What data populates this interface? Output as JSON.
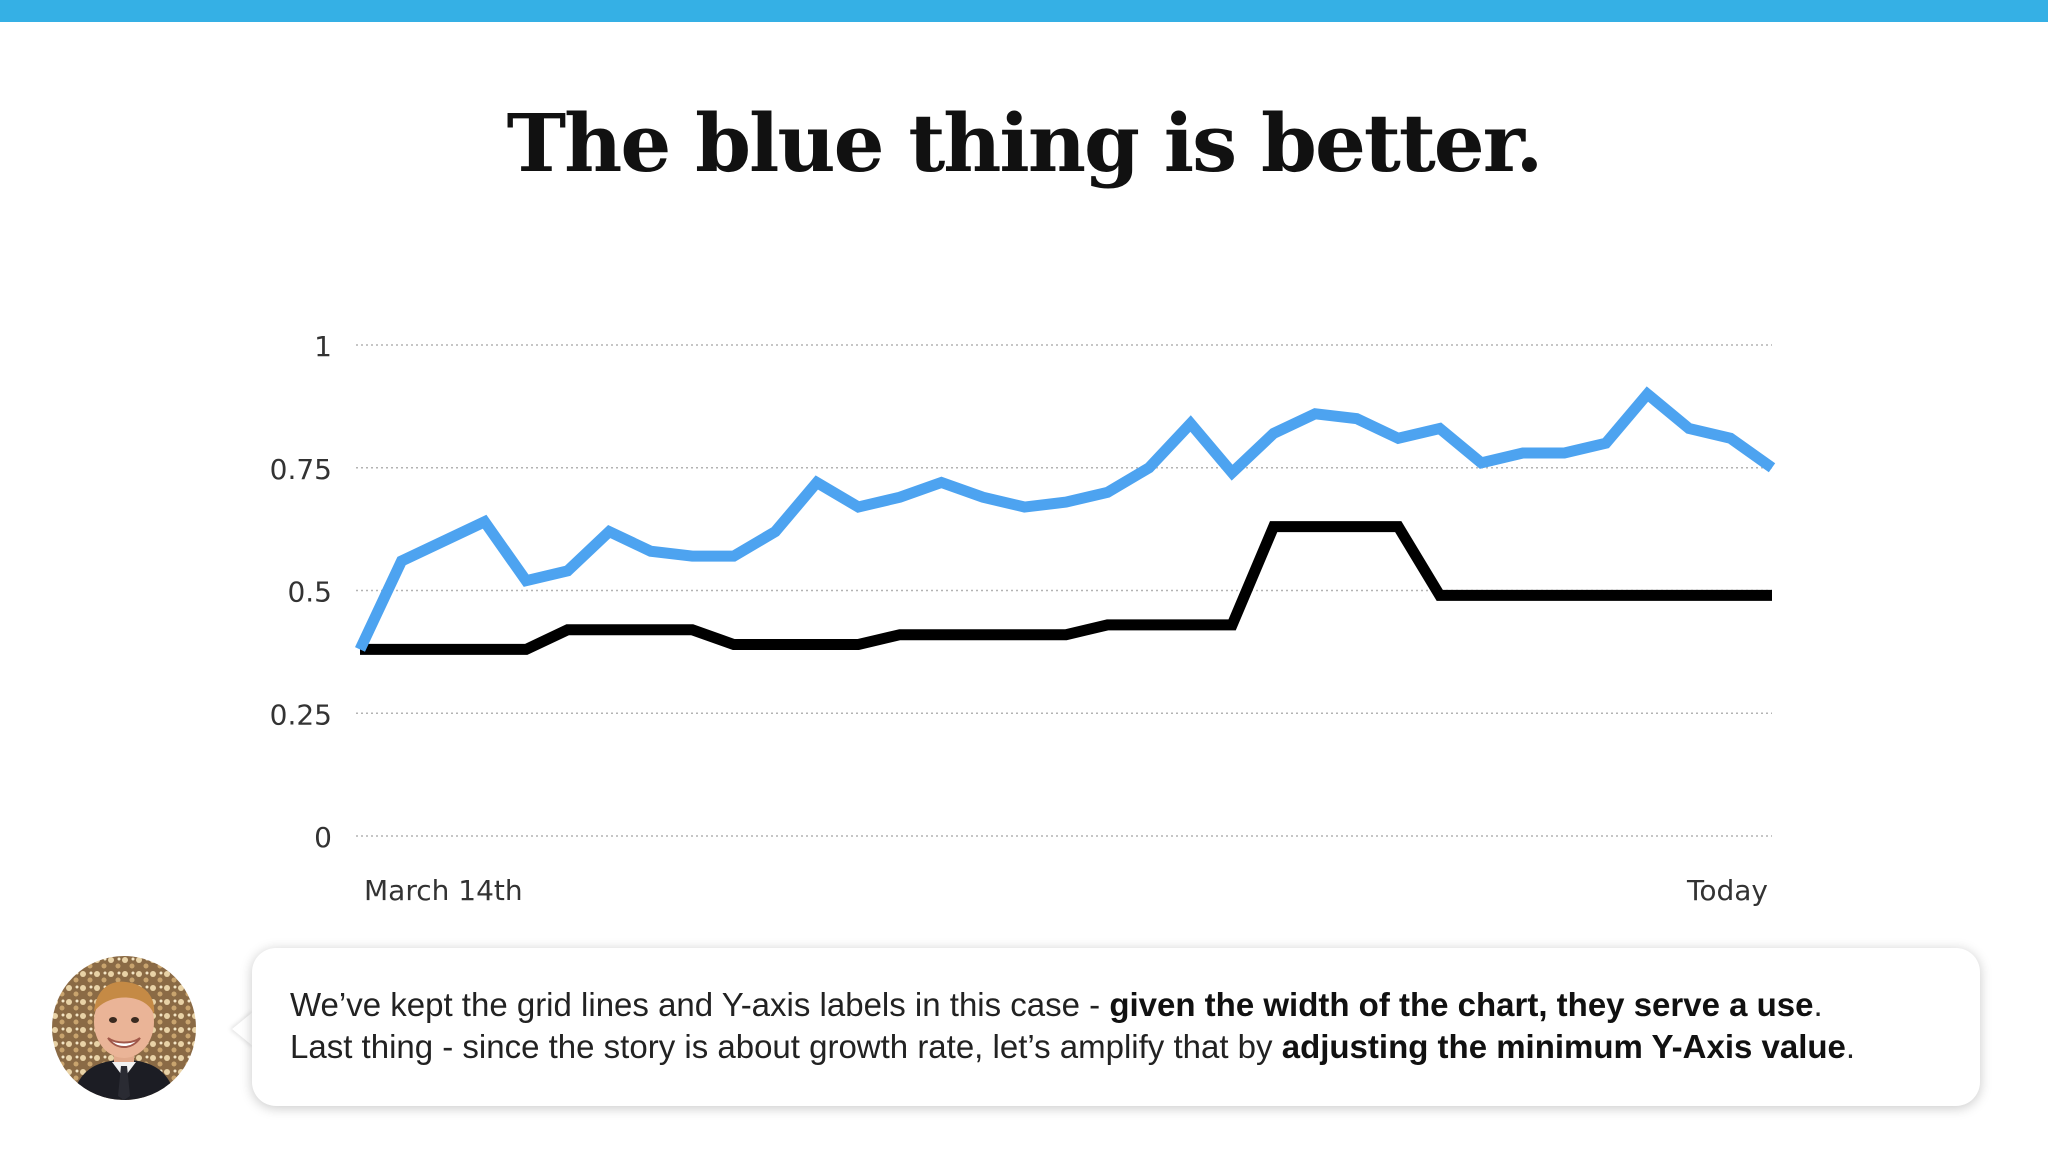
{
  "slide": {
    "title": "The blue thing is better.",
    "accent_color": "#35B0E5"
  },
  "chart_data": {
    "type": "line",
    "title": "",
    "xlabel": "",
    "ylabel": "",
    "ylim": [
      0,
      1
    ],
    "yticks": [
      "0",
      "0.25",
      "0.5",
      "0.75",
      "1"
    ],
    "xtick_labels": [
      "March 14th",
      "Today"
    ],
    "grid": true,
    "legend": "none",
    "x": [
      0,
      1,
      2,
      3,
      4,
      5,
      6,
      7,
      8,
      9,
      10,
      11,
      12,
      13,
      14,
      15,
      16,
      17,
      18,
      19,
      20,
      21,
      22,
      23,
      24,
      25,
      26,
      27,
      28,
      29,
      30,
      31,
      32,
      33,
      34
    ],
    "series": [
      {
        "color": "#4DA3F0",
        "values": [
          0.38,
          0.56,
          0.6,
          0.64,
          0.52,
          0.54,
          0.62,
          0.58,
          0.57,
          0.57,
          0.62,
          0.72,
          0.67,
          0.69,
          0.72,
          0.69,
          0.67,
          0.68,
          0.7,
          0.75,
          0.84,
          0.74,
          0.82,
          0.86,
          0.85,
          0.81,
          0.83,
          0.76,
          0.78,
          0.78,
          0.8,
          0.9,
          0.83,
          0.81,
          0.75
        ]
      },
      {
        "color": "#000000",
        "values": [
          0.38,
          0.38,
          0.38,
          0.38,
          0.38,
          0.42,
          0.42,
          0.42,
          0.42,
          0.39,
          0.39,
          0.39,
          0.39,
          0.41,
          0.41,
          0.41,
          0.41,
          0.41,
          0.43,
          0.43,
          0.43,
          0.43,
          0.63,
          0.63,
          0.63,
          0.63,
          0.49,
          0.49,
          0.49,
          0.49,
          0.49,
          0.49,
          0.49,
          0.49,
          0.49
        ]
      }
    ]
  },
  "caption": {
    "line1_a": "We’ve kept the grid lines and Y-axis labels in this case - ",
    "line1_b": "given the width of the chart, they serve a use",
    "line1_c": ".",
    "line2_a": "Last thing - since the story is about growth rate, let’s amplify that by ",
    "line2_b": "adjusting the minimum Y-Axis value",
    "line2_c": "."
  }
}
